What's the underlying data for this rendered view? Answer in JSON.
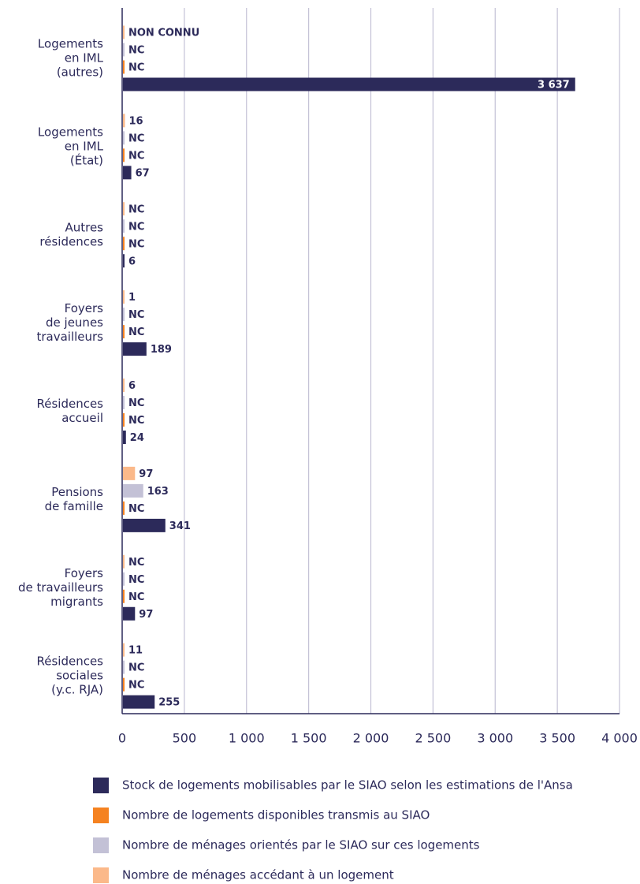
{
  "chart_data": {
    "type": "bar",
    "orientation": "horizontal",
    "categories": [
      [
        "Logements",
        "en IML",
        "(autres)"
      ],
      [
        "Logements",
        "en IML",
        "(État)"
      ],
      [
        "Autres",
        "résidences"
      ],
      [
        "Foyers",
        "de jeunes",
        "travailleurs"
      ],
      [
        "Résidences",
        "accueil"
      ],
      [
        "Pensions",
        "de famille"
      ],
      [
        "Foyers",
        "de travailleurs",
        "migrants"
      ],
      [
        "Résidences",
        "sociales",
        "(y.c. RJA)"
      ]
    ],
    "series": [
      {
        "name": "Stock de logements mobilisables par le SIAO selon les estimations de l'Ansa",
        "color": "#2c2a5a",
        "values": [
          3637,
          67,
          6,
          189,
          24,
          341,
          97,
          255
        ],
        "value_labels": [
          "3 637",
          "67",
          "6",
          "189",
          "24",
          "341",
          "97",
          "255"
        ]
      },
      {
        "name": "Nombre de logements disponibles transmis au SIAO",
        "color": "#f58220",
        "values": [
          null,
          null,
          null,
          null,
          null,
          null,
          null,
          null
        ],
        "value_labels": [
          "NC",
          "NC",
          "NC",
          "NC",
          "NC",
          "NC",
          "NC",
          "NC"
        ]
      },
      {
        "name": "Nombre de ménages orientés par le SIAO sur ces logements",
        "color": "#c3c1d6",
        "values": [
          null,
          null,
          null,
          null,
          null,
          163,
          null,
          null
        ],
        "value_labels": [
          "NC",
          "NC",
          "NC",
          "NC",
          "NC",
          "163",
          "NC",
          "NC"
        ]
      },
      {
        "name": "Nombre de ménages accédant à un logement",
        "color": "#fbb98a",
        "values": [
          null,
          16,
          null,
          1,
          6,
          97,
          null,
          11
        ],
        "value_labels": [
          "NON CONNU",
          "16",
          "NC",
          "1",
          "6",
          "97",
          "NC",
          "11"
        ]
      }
    ],
    "xlim": [
      0,
      4000
    ],
    "xticks": [
      0,
      500,
      {
        "value": 1000,
        "label": "1 000"
      },
      {
        "value": 1500,
        "label": "1 500"
      },
      {
        "value": 2000,
        "label": "2 000"
      },
      {
        "value": 2500,
        "label": "2 500"
      },
      {
        "value": 3000,
        "label": "3 000"
      },
      {
        "value": 3500,
        "label": "3 500"
      },
      {
        "value": 4000,
        "label": "4 000"
      }
    ],
    "grid": true,
    "legend": "bottom"
  }
}
